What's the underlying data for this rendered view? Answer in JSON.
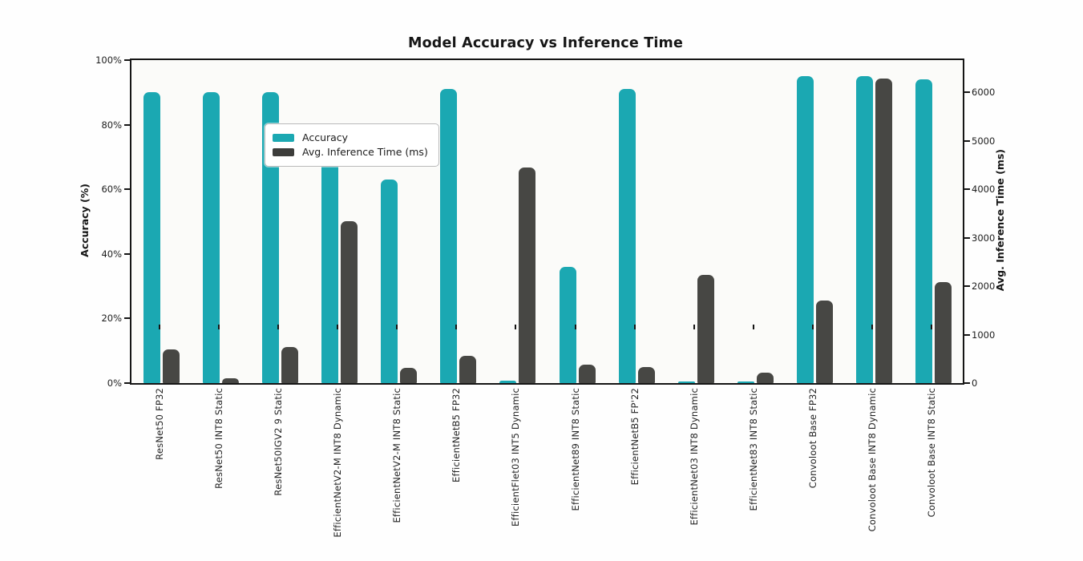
{
  "figure": {
    "title": "Model Accuracy vs Inference Time"
  },
  "legend": {
    "items": [
      {
        "label": "Accuracy",
        "color": "#1ba8b2"
      },
      {
        "label": "Avg. Inference Time (ms)",
        "color": "#3d3d3b"
      }
    ]
  },
  "axes": {
    "left": {
      "label": "Accuracy (%)",
      "ticks": [
        "0%",
        "20%",
        "40%",
        "60%",
        "80%",
        "100%"
      ],
      "tick_values": [
        0,
        20,
        40,
        60,
        80,
        100
      ]
    },
    "right": {
      "label": "Avg. Inference Time (ms)",
      "ticks": [
        "0",
        "1000",
        "2000",
        "3000",
        "4000",
        "5000",
        "6000"
      ],
      "tick_values": [
        0,
        1000,
        2000,
        3000,
        4000,
        5000,
        6000
      ]
    }
  },
  "chart_data": {
    "type": "bar",
    "title": "Model Accuracy vs Inference Time",
    "categories": [
      "ResNet50 FP32",
      "ResNet50 INT8 Static",
      "ResNet50IGV2 9 Static",
      "EfficientNetV2-M INT8 Dynamic",
      "EfficientNetV2-M INT8 Static",
      "EfficientNetB5 FP32",
      "EfficientFlet03 INT5 Dynamic",
      "EfficientNet89 INT8 Static",
      "EfficientNetB5 FP'22",
      "EfficientNet03 INT8 Dynamic",
      "EfficientNet83 INT8 Static",
      "Convoloot Base FP32",
      "Convoloot Base INT8 Dynamic",
      "Convoloot Base INT8 Static"
    ],
    "series": [
      {
        "name": "Accuracy",
        "axis": "left",
        "unit": "%",
        "color": "#1ba8b2",
        "values": [
          90,
          90,
          90,
          72,
          63,
          91,
          0.8,
          36,
          91,
          0.5,
          0.5,
          95,
          95,
          94
        ]
      },
      {
        "name": "Avg. Inference Time (ms)",
        "axis": "right",
        "unit": "ms",
        "color": "#474744",
        "values": [
          690,
          100,
          750,
          3350,
          310,
          570,
          4450,
          380,
          330,
          2240,
          220,
          1700,
          6290,
          2080
        ]
      }
    ],
    "ylabel_left": "Accuracy (%)",
    "ylabel_right": "Avg. Inference Time (ms)",
    "ylim_left": [
      0,
      100
    ],
    "ylim_right": [
      0,
      6670
    ],
    "legend_position": "upper left",
    "grid": false,
    "x_label_rotation": 90
  }
}
